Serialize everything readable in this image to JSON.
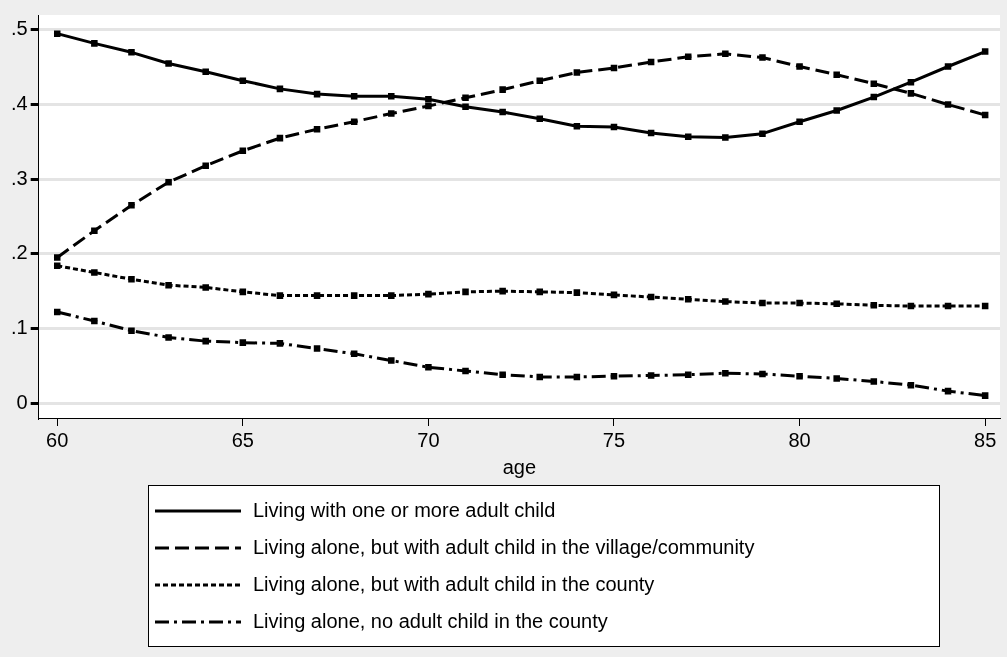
{
  "chart_data": {
    "type": "line",
    "xlabel": "age",
    "x": [
      60,
      61,
      62,
      63,
      64,
      65,
      66,
      67,
      68,
      69,
      70,
      71,
      72,
      73,
      74,
      75,
      76,
      77,
      78,
      79,
      80,
      81,
      82,
      83,
      84,
      85
    ],
    "xlim": [
      59.5,
      85.4
    ],
    "xticks": [
      60,
      65,
      70,
      75,
      80,
      85
    ],
    "ylim": [
      -0.02,
      0.52
    ],
    "yticks": [
      0,
      {
        "value": 0.1,
        "label": ".1"
      },
      {
        "value": 0.2,
        "label": ".2"
      },
      {
        "value": 0.3,
        "label": ".3"
      },
      {
        "value": 0.4,
        "label": ".4"
      },
      {
        "value": 0.5,
        "label": ".5"
      }
    ],
    "grid": "y",
    "legend": "bottom",
    "marker": "square",
    "series": [
      {
        "name": "Living with one or more adult child",
        "color": "#000000",
        "line_style": "solid",
        "values": [
          0.495,
          0.482,
          0.47,
          0.455,
          0.444,
          0.432,
          0.421,
          0.414,
          0.411,
          0.411,
          0.407,
          0.397,
          0.39,
          0.381,
          0.371,
          0.37,
          0.362,
          0.357,
          0.356,
          0.361,
          0.377,
          0.392,
          0.41,
          0.43,
          0.451,
          0.471
        ]
      },
      {
        "name": "Living alone, but with adult child in the village/community",
        "color": "#000000",
        "line_style": "dashed",
        "values": [
          0.195,
          0.231,
          0.265,
          0.296,
          0.318,
          0.338,
          0.355,
          0.367,
          0.377,
          0.388,
          0.398,
          0.409,
          0.42,
          0.432,
          0.443,
          0.449,
          0.457,
          0.464,
          0.468,
          0.463,
          0.451,
          0.44,
          0.428,
          0.415,
          0.4,
          0.386
        ]
      },
      {
        "name": "Living alone, but with adult child in the county",
        "color": "#000000",
        "line_style": "dotted",
        "values": [
          0.184,
          0.175,
          0.166,
          0.158,
          0.155,
          0.149,
          0.144,
          0.144,
          0.144,
          0.144,
          0.146,
          0.149,
          0.15,
          0.149,
          0.148,
          0.145,
          0.142,
          0.139,
          0.136,
          0.134,
          0.134,
          0.133,
          0.131,
          0.13,
          0.13,
          0.13
        ]
      },
      {
        "name": "Living alone, no adult child in the county",
        "color": "#000000",
        "line_style": "dashdot",
        "values": [
          0.122,
          0.11,
          0.097,
          0.088,
          0.083,
          0.081,
          0.08,
          0.073,
          0.066,
          0.057,
          0.048,
          0.043,
          0.038,
          0.035,
          0.035,
          0.036,
          0.037,
          0.038,
          0.04,
          0.039,
          0.036,
          0.033,
          0.029,
          0.024,
          0.016,
          0.01
        ]
      }
    ]
  }
}
